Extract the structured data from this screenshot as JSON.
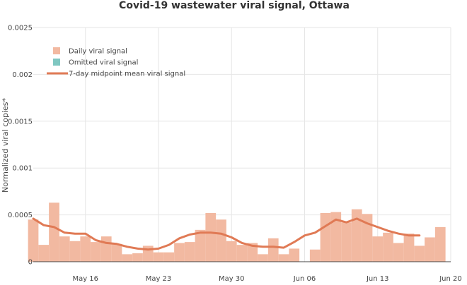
{
  "chart_data": {
    "type": "bar",
    "title": "Covid-19 wastewater viral signal, Ottawa",
    "xlabel": "",
    "ylabel": "Normalized viral copies*",
    "ylim": [
      0,
      0.0025
    ],
    "yticks": [
      0,
      0.0005,
      0.001,
      0.0015,
      0.002,
      0.0025
    ],
    "ytick_labels": [
      "0",
      "0.0005",
      "0.001",
      "0.0015",
      "0.002",
      "0.0025"
    ],
    "x_start": "2021-05-11",
    "xlim": [
      "2021-05-11",
      "2021-06-20"
    ],
    "xticks": [
      "2021-05-16",
      "2021-05-23",
      "2021-05-30",
      "2021-06-06",
      "2021-06-13",
      "2021-06-20"
    ],
    "xtick_labels": [
      "May 16",
      "May 23",
      "May 30",
      "Jun 06",
      "Jun 13",
      "Jun 20"
    ],
    "grid": true,
    "legend_position": "top-left",
    "colors": {
      "daily": "#f2b9a1",
      "omitted": "#7fc7c1",
      "mean": "#e07a55"
    },
    "series": [
      {
        "name": "Daily viral signal",
        "kind": "bar",
        "x": [
          "2021-05-11",
          "2021-05-12",
          "2021-05-13",
          "2021-05-14",
          "2021-05-15",
          "2021-05-16",
          "2021-05-17",
          "2021-05-18",
          "2021-05-19",
          "2021-05-20",
          "2021-05-21",
          "2021-05-22",
          "2021-05-23",
          "2021-05-24",
          "2021-05-25",
          "2021-05-26",
          "2021-05-27",
          "2021-05-28",
          "2021-05-29",
          "2021-05-30",
          "2021-05-31",
          "2021-06-01",
          "2021-06-02",
          "2021-06-03",
          "2021-06-04",
          "2021-06-05",
          "2021-06-06",
          "2021-06-07",
          "2021-06-08",
          "2021-06-09",
          "2021-06-10",
          "2021-06-11",
          "2021-06-12",
          "2021-06-13",
          "2021-06-14",
          "2021-06-15",
          "2021-06-16",
          "2021-06-17",
          "2021-06-18",
          "2021-06-19",
          "2021-06-20"
        ],
        "values": [
          0.00045,
          0.00018,
          0.00063,
          0.00027,
          0.00022,
          0.00027,
          0.00021,
          0.00027,
          0.00019,
          8e-05,
          9e-05,
          0.00017,
          0.0001,
          0.0001,
          0.0002,
          0.00021,
          0.00034,
          0.00052,
          0.00045,
          0.00022,
          0.00018,
          0.0002,
          8e-05,
          0.00025,
          8e-05,
          0.00014,
          null,
          0.00013,
          0.00052,
          0.00053,
          0.00042,
          0.00056,
          0.00051,
          0.00027,
          0.00031,
          0.0002,
          0.0003,
          0.00017,
          0.00026,
          0.00037,
          null
        ]
      },
      {
        "name": "Omitted viral signal",
        "kind": "bar",
        "x": [],
        "values": []
      },
      {
        "name": "7-day midpoint mean viral signal",
        "kind": "line",
        "x": [
          "2021-05-11",
          "2021-05-12",
          "2021-05-13",
          "2021-05-14",
          "2021-05-15",
          "2021-05-16",
          "2021-05-17",
          "2021-05-18",
          "2021-05-19",
          "2021-05-20",
          "2021-05-21",
          "2021-05-22",
          "2021-05-23",
          "2021-05-24",
          "2021-05-25",
          "2021-05-26",
          "2021-05-27",
          "2021-05-28",
          "2021-05-29",
          "2021-05-30",
          "2021-05-31",
          "2021-06-01",
          "2021-06-02",
          "2021-06-03",
          "2021-06-04",
          "2021-06-05",
          "2021-06-06",
          "2021-06-07",
          "2021-06-08",
          "2021-06-09",
          "2021-06-10",
          "2021-06-11",
          "2021-06-12",
          "2021-06-13",
          "2021-06-14",
          "2021-06-15",
          "2021-06-16",
          "2021-06-17"
        ],
        "values": [
          0.00046,
          0.00039,
          0.00037,
          0.00031,
          0.0003,
          0.0003,
          0.00023,
          0.0002,
          0.00019,
          0.00016,
          0.00014,
          0.00013,
          0.00014,
          0.00018,
          0.00025,
          0.00029,
          0.00031,
          0.00031,
          0.0003,
          0.00026,
          0.0002,
          0.00017,
          0.00016,
          0.00016,
          0.00015,
          0.00021,
          0.00028,
          0.00031,
          0.00038,
          0.00045,
          0.00042,
          0.00046,
          0.00041,
          0.00037,
          0.00033,
          0.0003,
          0.00028,
          0.00028
        ]
      }
    ]
  }
}
